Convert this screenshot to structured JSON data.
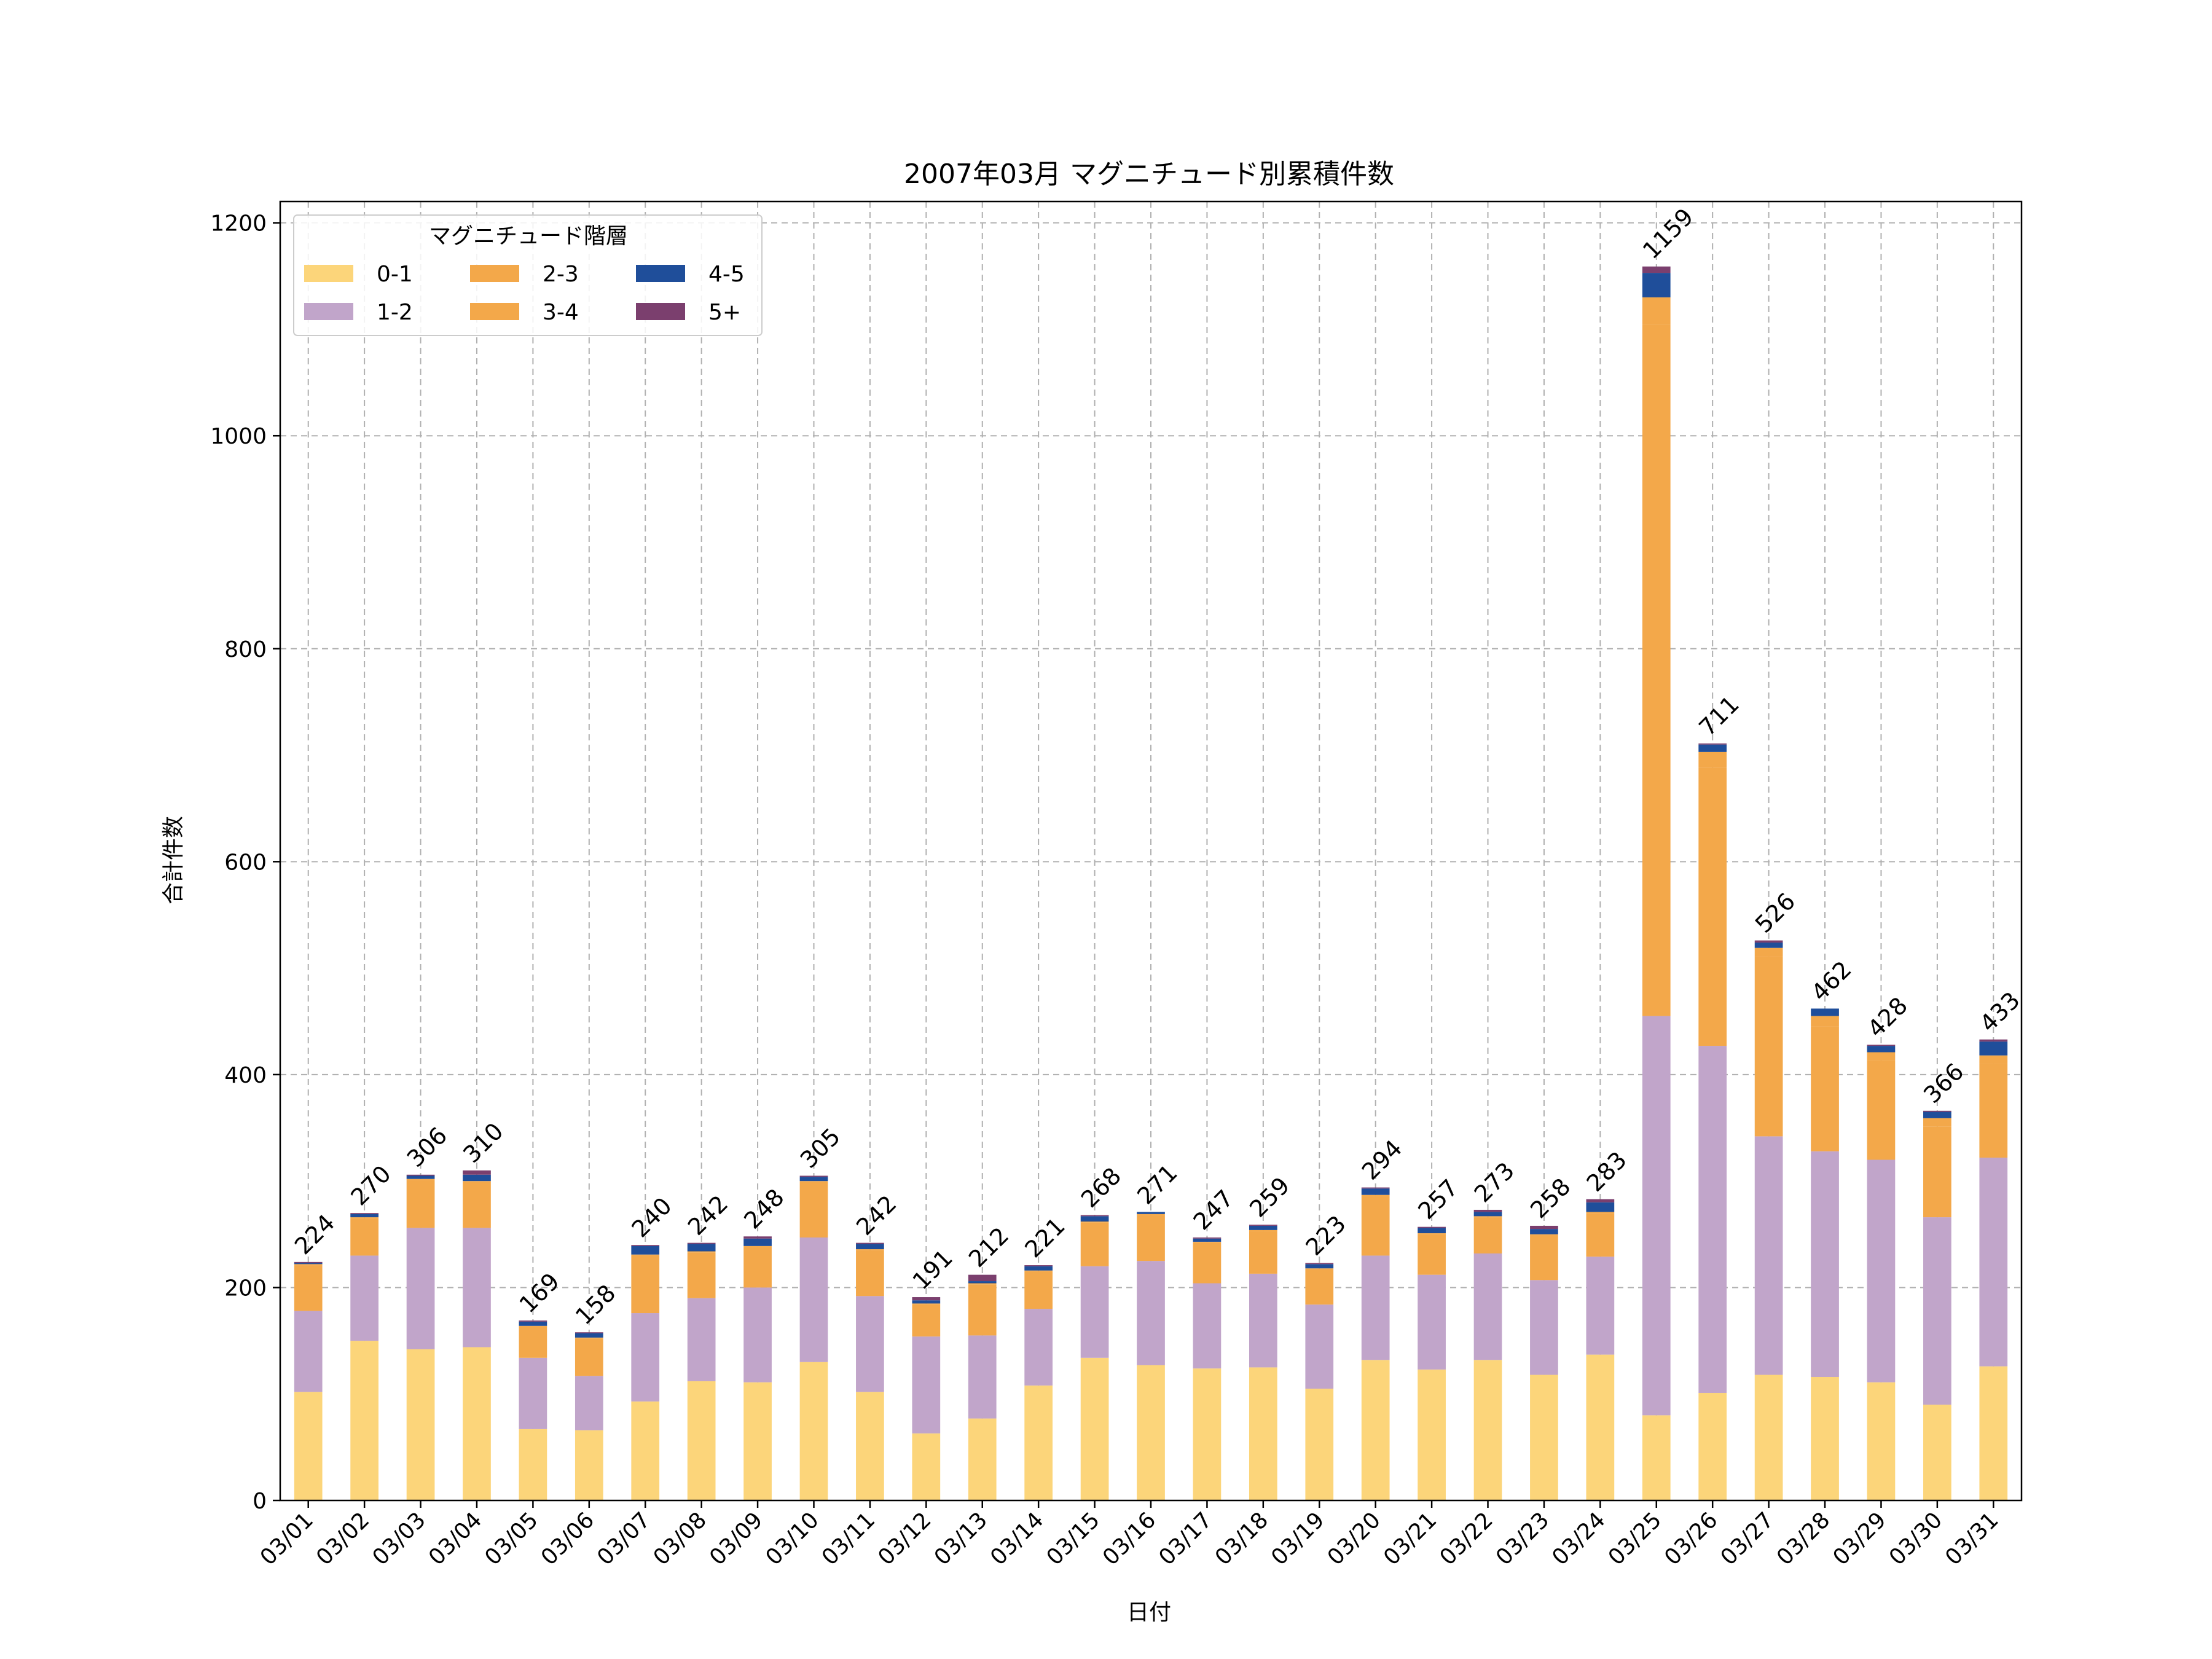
{
  "chart_data": {
    "type": "bar",
    "stacked": true,
    "title": "2007年03月 マグニチュード別累積件数",
    "xlabel": "日付",
    "ylabel": "合計件数",
    "ylim": [
      0,
      1220
    ],
    "yticks": [
      0,
      200,
      400,
      600,
      800,
      1000,
      1200
    ],
    "grid": true,
    "legend": {
      "title": "マグニチュード階層",
      "placement": "top-left",
      "columns": 3
    },
    "categories": [
      "03/01",
      "03/02",
      "03/03",
      "03/04",
      "03/05",
      "03/06",
      "03/07",
      "03/08",
      "03/09",
      "03/10",
      "03/11",
      "03/12",
      "03/13",
      "03/14",
      "03/15",
      "03/16",
      "03/17",
      "03/18",
      "03/19",
      "03/20",
      "03/21",
      "03/22",
      "03/23",
      "03/24",
      "03/25",
      "03/26",
      "03/27",
      "03/28",
      "03/29",
      "03/30",
      "03/31"
    ],
    "totals": [
      224,
      270,
      306,
      310,
      169,
      158,
      240,
      242,
      248,
      305,
      242,
      191,
      212,
      221,
      268,
      271,
      247,
      259,
      223,
      294,
      257,
      273,
      258,
      283,
      1159,
      711,
      526,
      462,
      428,
      366,
      433
    ],
    "series": [
      {
        "name": "0-1",
        "color": "#fcd57a",
        "values": [
          102,
          150,
          142,
          144,
          67,
          66,
          93,
          112,
          111,
          130,
          102,
          63,
          77,
          108,
          134,
          127,
          124,
          125,
          105,
          132,
          123,
          132,
          118,
          137,
          80,
          101,
          118,
          116,
          111,
          90,
          126
        ]
      },
      {
        "name": "1-2",
        "color": "#c1a5ca",
        "values": [
          76,
          80,
          114,
          112,
          67,
          51,
          83,
          78,
          89,
          117,
          90,
          91,
          78,
          72,
          86,
          98,
          80,
          88,
          79,
          98,
          89,
          100,
          89,
          92,
          375,
          326,
          224,
          212,
          209,
          176,
          196
        ]
      },
      {
        "name": "2-3",
        "color": "#f3a84a",
        "values": [
          43,
          35,
          45,
          43,
          29,
          35,
          54,
          43,
          38,
          52,
          43,
          30,
          48,
          35,
          41,
          43,
          38,
          40,
          33,
          56,
          38,
          34,
          42,
          41,
          650,
          261,
          169,
          117,
          93,
          85,
          88
        ]
      },
      {
        "name": "3-4",
        "color": "#f3a84a",
        "values": [
          1,
          1,
          1,
          1,
          1,
          1,
          1,
          1,
          1,
          1,
          1,
          1,
          1,
          1,
          1,
          1,
          1,
          1,
          1,
          1,
          1,
          1,
          1,
          1,
          25,
          15,
          8,
          10,
          8,
          8,
          8
        ]
      },
      {
        "name": "4-5",
        "color": "#1f4e9a",
        "values": [
          1,
          3,
          3,
          6,
          4,
          4,
          8,
          7,
          7,
          4,
          5,
          3,
          2,
          4,
          5,
          2,
          3,
          4,
          4,
          6,
          5,
          4,
          5,
          9,
          23,
          7,
          5,
          7,
          6,
          6,
          13
        ]
      },
      {
        "name": "5+",
        "color": "#7b3f6e",
        "values": [
          1,
          1,
          1,
          4,
          1,
          1,
          1,
          1,
          2,
          1,
          1,
          3,
          6,
          1,
          1,
          0,
          1,
          1,
          1,
          1,
          1,
          2,
          3,
          3,
          6,
          1,
          2,
          0,
          1,
          1,
          2
        ]
      }
    ]
  }
}
